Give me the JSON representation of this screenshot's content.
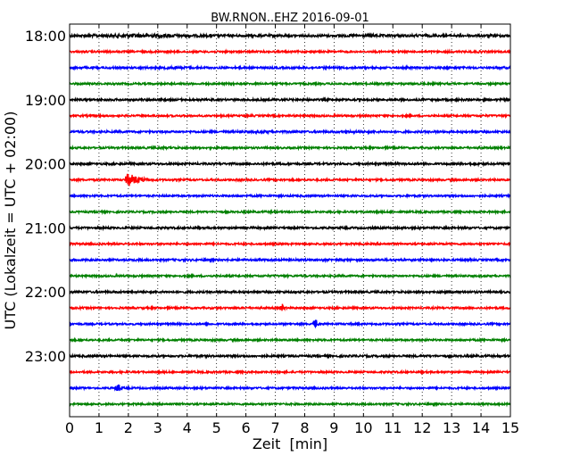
{
  "chart_data": {
    "type": "line",
    "title": "BW.RNON..EHZ 2016-09-01",
    "xlabel": "Zeit  [min]",
    "ylabel": "UTC (Lokalzeit = UTC + 02:00)",
    "xlim": [
      0,
      15
    ],
    "x_ticks": [
      0,
      1,
      2,
      3,
      4,
      5,
      6,
      7,
      8,
      9,
      10,
      11,
      12,
      13,
      14,
      15
    ],
    "x_tick_labels": [
      "0",
      "1",
      "2",
      "3",
      "4",
      "5",
      "6",
      "7",
      "8",
      "9",
      "10",
      "11",
      "12",
      "13",
      "14",
      "15"
    ],
    "y_tick_labels": [
      "18:00",
      "19:00",
      "20:00",
      "21:00",
      "22:00",
      "23:00"
    ],
    "grid": "vertical-dotted",
    "trace_colors": [
      "#000000",
      "#ff0000",
      "#0000ff",
      "#008000"
    ],
    "traces": [
      {
        "start": "18:00",
        "color": "#000000",
        "noise": 1.3,
        "events": [
          {
            "t": 2.5,
            "amp": 2.2,
            "w": 1.0
          },
          {
            "t": 10.2,
            "amp": 1.5,
            "w": 0.3
          }
        ]
      },
      {
        "start": "18:15",
        "color": "#ff0000",
        "noise": 1.0,
        "events": [
          {
            "t": 14.0,
            "amp": 1.3,
            "w": 0.2
          }
        ]
      },
      {
        "start": "18:30",
        "color": "#0000ff",
        "noise": 1.1,
        "events": [
          {
            "t": 3.6,
            "amp": 1.4,
            "w": 0.5
          }
        ]
      },
      {
        "start": "18:45",
        "color": "#008000",
        "noise": 1.0,
        "events": []
      },
      {
        "start": "19:00",
        "color": "#000000",
        "noise": 1.1,
        "events": [
          {
            "t": 7.9,
            "amp": 1.3,
            "w": 0.3
          }
        ]
      },
      {
        "start": "19:15",
        "color": "#ff0000",
        "noise": 1.0,
        "events": []
      },
      {
        "start": "19:30",
        "color": "#0000ff",
        "noise": 1.1,
        "events": [
          {
            "t": 6.5,
            "amp": 1.4,
            "w": 0.5
          },
          {
            "t": 9.8,
            "amp": 1.4,
            "w": 0.4
          }
        ]
      },
      {
        "start": "19:45",
        "color": "#008000",
        "noise": 1.0,
        "events": [
          {
            "t": 3.2,
            "amp": 1.3,
            "w": 0.4
          }
        ]
      },
      {
        "start": "20:00",
        "color": "#000000",
        "noise": 1.1,
        "events": [
          {
            "t": 13.9,
            "amp": 1.3,
            "w": 0.3
          }
        ]
      },
      {
        "start": "20:15",
        "color": "#ff0000",
        "noise": 1.0,
        "events": [
          {
            "t": 1.95,
            "amp": 7.0,
            "w": 1.0,
            "quake": true
          }
        ]
      },
      {
        "start": "20:30",
        "color": "#0000ff",
        "noise": 1.0,
        "events": []
      },
      {
        "start": "20:45",
        "color": "#008000",
        "noise": 1.0,
        "events": []
      },
      {
        "start": "21:00",
        "color": "#000000",
        "noise": 1.1,
        "events": []
      },
      {
        "start": "21:15",
        "color": "#ff0000",
        "noise": 1.0,
        "events": []
      },
      {
        "start": "21:30",
        "color": "#0000ff",
        "noise": 1.1,
        "events": [
          {
            "t": 9.1,
            "amp": 1.3,
            "w": 0.3
          }
        ]
      },
      {
        "start": "21:45",
        "color": "#008000",
        "noise": 1.0,
        "events": []
      },
      {
        "start": "22:00",
        "color": "#000000",
        "noise": 1.1,
        "events": [
          {
            "t": 12.5,
            "amp": 1.3,
            "w": 0.3
          }
        ]
      },
      {
        "start": "22:15",
        "color": "#ff0000",
        "noise": 1.0,
        "events": [
          {
            "t": 7.25,
            "amp": 3.5,
            "w": 0.1,
            "spike": true
          }
        ]
      },
      {
        "start": "22:30",
        "color": "#0000ff",
        "noise": 1.0,
        "events": [
          {
            "t": 8.35,
            "amp": 4.5,
            "w": 0.12,
            "spike": true
          }
        ]
      },
      {
        "start": "22:45",
        "color": "#008000",
        "noise": 1.0,
        "events": []
      },
      {
        "start": "23:00",
        "color": "#000000",
        "noise": 1.1,
        "events": []
      },
      {
        "start": "23:15",
        "color": "#ff0000",
        "noise": 1.0,
        "events": []
      },
      {
        "start": "23:30",
        "color": "#0000ff",
        "noise": 1.0,
        "events": [
          {
            "t": 1.65,
            "amp": 3.5,
            "w": 0.12,
            "spike": true
          }
        ]
      },
      {
        "start": "23:45",
        "color": "#008000",
        "noise": 1.0,
        "events": []
      }
    ]
  }
}
